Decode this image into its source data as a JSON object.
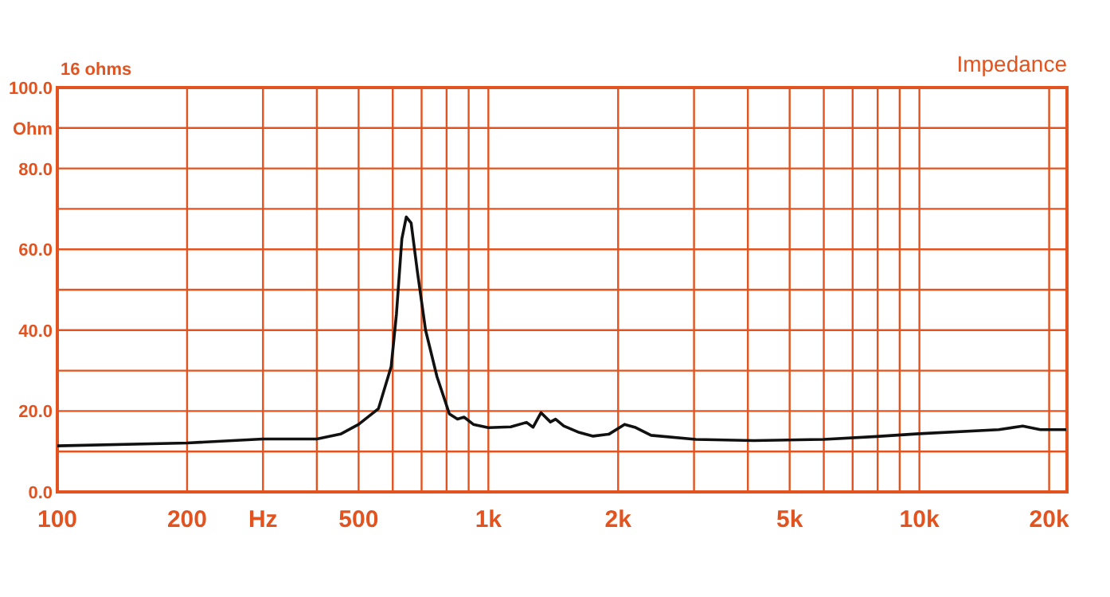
{
  "chart_data": {
    "type": "line",
    "title": "16 ohms",
    "subtitle": "Impedance",
    "x": [
      100,
      200,
      300,
      400,
      454,
      500,
      556,
      595,
      612,
      630,
      645,
      662,
      684,
      715,
      760,
      812,
      848,
      878,
      923,
      1000,
      1127,
      1226,
      1270,
      1325,
      1393,
      1432,
      1496,
      1625,
      1750,
      1905,
      2070,
      2186,
      2385,
      3030,
      4130,
      5990,
      7950,
      9980,
      15280,
      17370,
      19080,
      21900
    ],
    "series": [
      {
        "color": "#111111",
        "values": [
          11.4,
          12.1,
          13.1,
          13.1,
          14.3,
          16.7,
          20.6,
          31,
          44,
          62.6,
          68,
          66.5,
          54.7,
          40,
          28.5,
          19.3,
          18,
          18.5,
          16.7,
          15.9,
          16.1,
          17.2,
          16,
          19.6,
          17.3,
          18,
          16.3,
          14.7,
          13.8,
          14.3,
          16.7,
          16,
          14,
          13,
          12.7,
          13,
          13.7,
          14.4,
          15.4,
          16.3,
          15.4,
          15.4
        ]
      }
    ],
    "log": "x",
    "xlim": [
      100,
      22000
    ],
    "ylim": [
      0,
      100
    ],
    "xticks": [
      100,
      200,
      {
        "value": 300,
        "label": "Hz"
      },
      {
        "value": 400,
        "label": null
      },
      500,
      {
        "value": 600,
        "label": null
      },
      {
        "value": 700,
        "label": null
      },
      {
        "value": 800,
        "label": null
      },
      {
        "value": 900,
        "label": null
      },
      {
        "value": 1000,
        "label": "1k"
      },
      {
        "value": 2000,
        "label": "2k"
      },
      {
        "value": 3000,
        "label": null
      },
      {
        "value": 4000,
        "label": null
      },
      {
        "value": 5000,
        "label": "5k"
      },
      {
        "value": 6000,
        "label": null
      },
      {
        "value": 7000,
        "label": null
      },
      {
        "value": 8000,
        "label": null
      },
      {
        "value": 9000,
        "label": null
      },
      {
        "value": 10000,
        "label": "10k"
      },
      {
        "value": 20000,
        "label": "20k"
      }
    ],
    "yticks": [
      {
        "value": 0,
        "label": "0.0"
      },
      {
        "value": 10,
        "label": null
      },
      {
        "value": 20,
        "label": "20.0"
      },
      {
        "value": 30,
        "label": null
      },
      {
        "value": 40,
        "label": "40.0"
      },
      {
        "value": 50,
        "label": null
      },
      {
        "value": 60,
        "label": "60.0"
      },
      {
        "value": 70,
        "label": null
      },
      {
        "value": 80,
        "label": "80.0"
      },
      {
        "value": 90,
        "label": "Ohm"
      },
      {
        "value": 100,
        "label": "100.0"
      }
    ],
    "grid": true,
    "line_style": "solid",
    "marker": "none"
  }
}
